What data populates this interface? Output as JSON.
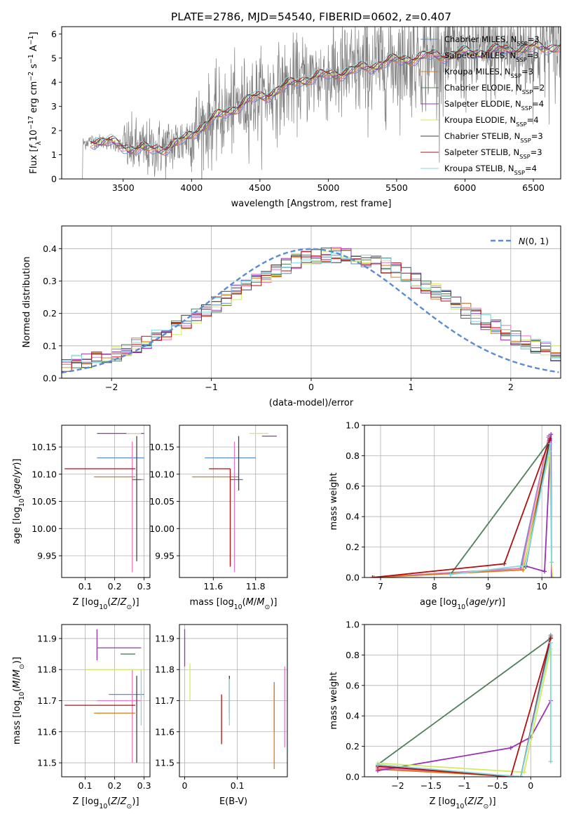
{
  "figure": {
    "title": "PLATE=2786, MJD=54540, FIBERID=0602, z=0.407"
  },
  "models": [
    {
      "name": "Chabrier MILES, N_SSP=3",
      "base": "Chabrier MILES, N",
      "sub": "SSP",
      "tail": "=3",
      "color": "#5b8bd0"
    },
    {
      "name": "Salpeter MILES, N_SSP=3",
      "base": "Salpeter MILES, N",
      "sub": "SSP",
      "tail": "=3",
      "color": "#e377c2"
    },
    {
      "name": "Kroupa MILES, N_SSP=3",
      "base": "Kroupa MILES, N",
      "sub": "SSP",
      "tail": "=3",
      "color": "#dd7a20"
    },
    {
      "name": "Chabrier ELODIE, N_SSP=2",
      "base": "Chabrier ELODIE, N",
      "sub": "SSP",
      "tail": "=2",
      "color": "#4f7f5a"
    },
    {
      "name": "Salpeter ELODIE, N_SSP=4",
      "base": "Salpeter ELODIE, N",
      "sub": "SSP",
      "tail": "=4",
      "color": "#9b30b8"
    },
    {
      "name": "Kroupa ELODIE, N_SSP=4",
      "base": "Kroupa ELODIE, N",
      "sub": "SSP",
      "tail": "=4",
      "color": "#d4ea5c"
    },
    {
      "name": "Chabrier STELIB, N_SSP=3",
      "base": "Chabrier STELIB, N",
      "sub": "SSP",
      "tail": "=3",
      "color": "#3d4048"
    },
    {
      "name": "Salpeter STELIB, N_SSP=3",
      "base": "Salpeter STELIB, N",
      "sub": "SSP",
      "tail": "=3",
      "color": "#b01010"
    },
    {
      "name": "Kroupa STELIB, N_SSP=4",
      "base": "Kroupa STELIB, N",
      "sub": "SSP",
      "tail": "=4",
      "color": "#82d8e0"
    }
  ],
  "chart_data": [
    {
      "id": "spectrum",
      "type": "line",
      "xlabel": "wavelength [Angstrom, rest frame]",
      "ylabel": "Flux [f_λ 10^-17 erg cm^-2 s^-1 A^-1]",
      "xlim": [
        3050,
        6700
      ],
      "ylim": [
        0,
        6.3
      ],
      "xticks": [
        3500,
        4000,
        4500,
        5000,
        5500,
        6000,
        6500
      ],
      "yticks": [
        0,
        1,
        2,
        3,
        4,
        5,
        6
      ],
      "legend": "upper-right",
      "data_color": "#808080",
      "x_start": 3200,
      "x_end": 6700,
      "continuum_anchors": {
        "x": [
          3200,
          3260,
          3400,
          3550,
          3700,
          3800,
          3950,
          4050,
          4200,
          4400,
          4600,
          4800,
          5000,
          5200,
          5400,
          5600,
          5800,
          6000,
          6200,
          6500,
          6700
        ],
        "y": [
          1.45,
          1.6,
          1.5,
          1.3,
          1.2,
          1.3,
          1.6,
          2.1,
          2.6,
          3.2,
          3.6,
          4.1,
          4.3,
          4.5,
          4.8,
          5.0,
          5.1,
          5.2,
          5.3,
          5.4,
          5.5
        ]
      }
    },
    {
      "id": "residuals",
      "type": "histogram",
      "xlabel": "(data-model)/error",
      "ylabel": "Normed distribution",
      "xlim": [
        -2.5,
        2.5
      ],
      "ylim": [
        0,
        0.47
      ],
      "xticks": [
        -2,
        -1,
        0,
        1,
        2
      ],
      "yticks": [
        0.0,
        0.1,
        0.2,
        0.3,
        0.4
      ],
      "grid": true,
      "legend": "upper-right",
      "reference_label": "N(0,1)",
      "reference_color": "#5b8bd0",
      "bin_width": 0.1
    },
    {
      "id": "age-vs-Z",
      "type": "errorbar",
      "xlabel": "Z [log10(Z/Z⊙)]",
      "ylabel": "age  [log10(age/yr)]",
      "xlim": [
        0.02,
        0.32
      ],
      "ylim": [
        9.91,
        10.19
      ],
      "xticks": [
        0.1,
        0.2,
        0.3
      ],
      "yticks": [
        9.95,
        10.0,
        10.05,
        10.1,
        10.15
      ],
      "grid": true,
      "points": [
        {
          "x": 0.22,
          "xerr": [
            0.08,
            0.08
          ],
          "y": 10.13,
          "yerr": [
            0.0,
            0.0
          ]
        },
        {
          "x": 0.26,
          "xerr": [
            0.0,
            0.04
          ],
          "y": 10.09,
          "yerr": [
            0.17,
            0.07
          ]
        },
        {
          "x": 0.2,
          "xerr": [
            0.07,
            0.07
          ],
          "y": 10.095,
          "yerr": [
            0.0,
            0.0
          ]
        },
        {
          "x": 0.28,
          "xerr": [
            0.02,
            0.01
          ],
          "y": 10.09,
          "yerr": [
            0.0,
            0.0
          ]
        },
        {
          "x": 0.22,
          "xerr": [
            0.08,
            0.08
          ],
          "y": 10.175,
          "yerr": [
            0.0,
            0.0
          ]
        },
        {
          "x": 0.24,
          "xerr": [
            0.0,
            0.05
          ],
          "y": 10.175,
          "yerr": [
            0.0,
            0.0
          ]
        },
        {
          "x": 0.275,
          "xerr": [
            0.0,
            0.0
          ],
          "y": 10.12,
          "yerr": [
            0.18,
            0.05
          ]
        },
        {
          "x": 0.11,
          "xerr": [
            0.08,
            0.16
          ],
          "y": 10.11,
          "yerr": [
            0.0,
            0.0
          ]
        },
        {
          "x": 0.29,
          "xerr": [
            0.0,
            0.0
          ],
          "y": 10.09,
          "yerr": [
            0.0,
            0.0
          ]
        }
      ]
    },
    {
      "id": "age-vs-mass",
      "type": "errorbar",
      "xlabel": "mass [log10(M/M⊙)]",
      "ylabel": "",
      "xlim": [
        11.44,
        11.95
      ],
      "ylim": [
        9.91,
        10.19
      ],
      "xticks": [
        11.6,
        11.8
      ],
      "yticks": [
        9.95,
        10.0,
        10.05,
        10.1,
        10.15
      ],
      "grid": true,
      "points": [
        {
          "x": 11.72,
          "xerr": [
            0.16,
            0.08
          ],
          "y": 10.13,
          "yerr": [
            0.0,
            0.0
          ]
        },
        {
          "x": 11.7,
          "xerr": [
            0.0,
            0.0
          ],
          "y": 10.09,
          "yerr": [
            0.17,
            0.07
          ]
        },
        {
          "x": 11.66,
          "xerr": [
            0.16,
            0.06
          ],
          "y": 10.095,
          "yerr": [
            0.0,
            0.0
          ]
        },
        {
          "x": 11.72,
          "xerr": [
            0.04,
            0.02
          ],
          "y": 10.09,
          "yerr": [
            0.0,
            0.0
          ]
        },
        {
          "x": 11.87,
          "xerr": [
            0.04,
            0.03
          ],
          "y": 10.17,
          "yerr": [
            0.0,
            0.0
          ]
        },
        {
          "x": 11.8,
          "xerr": [
            0.03,
            0.06
          ],
          "y": 10.175,
          "yerr": [
            0.0,
            0.0
          ]
        },
        {
          "x": 11.72,
          "xerr": [
            0.0,
            0.0
          ],
          "y": 10.12,
          "yerr": [
            0.05,
            0.05
          ]
        },
        {
          "x": 11.68,
          "xerr": [
            0.1,
            0.0
          ],
          "y": 10.11,
          "yerr": [
            0.18,
            0.0
          ]
        },
        {
          "x": 11.72,
          "xerr": [
            0.0,
            0.0
          ],
          "y": 10.09,
          "yerr": [
            0.0,
            0.0
          ]
        }
      ]
    },
    {
      "id": "weight-vs-age",
      "type": "line",
      "xlabel": "age  [log10(age/yr)]",
      "ylabel": "mass weight",
      "xlim": [
        6.7,
        10.35
      ],
      "ylim": [
        0,
        1.0
      ],
      "xticks": [
        7,
        8,
        9,
        10
      ],
      "yticks": [
        0.0,
        0.2,
        0.4,
        0.6,
        0.8,
        1.0
      ],
      "grid": true,
      "series": [
        {
          "x": [
            6.85,
            9.6,
            10.13
          ],
          "y": [
            0.0,
            0.06,
            0.93
          ]
        },
        {
          "x": [
            6.85,
            9.62,
            10.12
          ],
          "y": [
            0.0,
            0.06,
            0.92
          ]
        },
        {
          "x": [
            6.88,
            9.65,
            10.14
          ],
          "y": [
            0.0,
            0.05,
            0.9
          ]
        },
        {
          "x": [
            8.3,
            10.15
          ],
          "y": [
            0.02,
            0.9
          ]
        },
        {
          "x": [
            9.65,
            10.05,
            10.17,
            10.18
          ],
          "y": [
            0.08,
            0.04,
            0.94,
            0.0
          ]
        },
        {
          "x": [
            9.65,
            10.15,
            10.18,
            10.2
          ],
          "y": [
            0.07,
            0.83,
            0.1,
            0.0
          ]
        },
        {
          "x": [
            9.7,
            10.15
          ],
          "y": [
            0.07,
            0.91
          ]
        },
        {
          "x": [
            6.85,
            9.3,
            10.15
          ],
          "y": [
            0.0,
            0.09,
            0.91
          ]
        },
        {
          "x": [
            8.3,
            9.7,
            10.16,
            10.18
          ],
          "y": [
            0.02,
            0.08,
            0.88,
            0.1
          ]
        }
      ]
    },
    {
      "id": "mass-vs-Z",
      "type": "errorbar",
      "xlabel": "Z [log10(Z/Z⊙)]",
      "ylabel": "mass [log10(M/M⊙)]",
      "xlim": [
        0.02,
        0.32
      ],
      "ylim": [
        11.455,
        11.945
      ],
      "xticks": [
        0.1,
        0.2,
        0.3
      ],
      "yticks": [
        11.5,
        11.6,
        11.7,
        11.8,
        11.9
      ],
      "grid": true,
      "points": [
        {
          "x": 0.24,
          "xerr": [
            0.06,
            0.06
          ],
          "y": 11.72,
          "yerr": [
            0.0,
            0.0
          ]
        },
        {
          "x": 0.26,
          "xerr": [
            0.12,
            0.03
          ],
          "y": 11.7,
          "yerr": [
            0.2,
            0.1
          ]
        },
        {
          "x": 0.2,
          "xerr": [
            0.07,
            0.07
          ],
          "y": 11.66,
          "yerr": [
            0.0,
            0.0
          ]
        },
        {
          "x": 0.25,
          "xerr": [
            0.03,
            0.02
          ],
          "y": 11.85,
          "yerr": [
            0.0,
            0.0
          ]
        },
        {
          "x": 0.14,
          "xerr": [
            0.0,
            0.15
          ],
          "y": 11.87,
          "yerr": [
            0.04,
            0.06
          ]
        },
        {
          "x": 0.24,
          "xerr": [
            0.14,
            0.06
          ],
          "y": 11.8,
          "yerr": [
            0.0,
            0.0
          ]
        },
        {
          "x": 0.275,
          "xerr": [
            0.0,
            0.0
          ],
          "y": 11.72,
          "yerr": [
            0.22,
            0.06
          ]
        },
        {
          "x": 0.11,
          "xerr": [
            0.08,
            0.16
          ],
          "y": 11.685,
          "yerr": [
            0.0,
            0.0
          ]
        },
        {
          "x": 0.29,
          "xerr": [
            0.0,
            0.0
          ],
          "y": 11.7,
          "yerr": [
            0.08,
            0.1
          ]
        }
      ]
    },
    {
      "id": "mass-vs-ebv",
      "type": "errorbar",
      "xlabel": "E(B-V)",
      "ylabel": "",
      "xlim": [
        -0.01,
        0.195
      ],
      "ylim": [
        11.455,
        11.945
      ],
      "xticks": [
        0.0,
        0.1
      ],
      "yticks": [
        11.5,
        11.6,
        11.7,
        11.8,
        11.9
      ],
      "grid": true,
      "points": [
        {
          "x": 0.17,
          "xerr": [
            0.0,
            0.0
          ],
          "y": 11.7,
          "yerr": [
            0.1,
            0.06
          ]
        },
        {
          "x": 0.19,
          "xerr": [
            0.0,
            0.0
          ],
          "y": 11.7,
          "yerr": [
            0.15,
            0.11
          ]
        },
        {
          "x": 0.17,
          "xerr": [
            0.0,
            0.0
          ],
          "y": 11.7,
          "yerr": [
            0.22,
            0.05
          ]
        },
        {
          "x": 0.085,
          "xerr": [
            0.0,
            0.0
          ],
          "y": 11.72,
          "yerr": [
            0.06,
            0.06
          ]
        },
        {
          "x": 0.0,
          "xerr": [
            0.0,
            0.0
          ],
          "y": 11.87,
          "yerr": [
            0.06,
            0.06
          ]
        },
        {
          "x": 0.01,
          "xerr": [
            0.0,
            0.0
          ],
          "y": 11.75,
          "yerr": [
            0.05,
            0.07
          ]
        },
        {
          "x": 0.085,
          "xerr": [
            0.0,
            0.0
          ],
          "y": 11.72,
          "yerr": [
            0.08,
            0.06
          ]
        },
        {
          "x": 0.07,
          "xerr": [
            0.0,
            0.0
          ],
          "y": 11.64,
          "yerr": [
            0.08,
            0.08
          ]
        },
        {
          "x": 0.085,
          "xerr": [
            0.0,
            0.0
          ],
          "y": 11.67,
          "yerr": [
            0.05,
            0.1
          ]
        }
      ]
    },
    {
      "id": "weight-vs-Z",
      "type": "line",
      "xlabel": "Z [log10(Z/Z⊙)]",
      "ylabel": "mass weight",
      "xlim": [
        -2.5,
        0.45
      ],
      "ylim": [
        0,
        1.0
      ],
      "xticks": [
        -2.0,
        -1.5,
        -1.0,
        -0.5,
        0.0
      ],
      "yticks": [
        0.0,
        0.2,
        0.4,
        0.6,
        0.8,
        1.0
      ],
      "grid": true,
      "series": [
        {
          "x": [
            -2.3,
            -0.15,
            0.3
          ],
          "y": [
            0.06,
            0.0,
            0.93
          ]
        },
        {
          "x": [
            -2.3,
            -0.15,
            0.28
          ],
          "y": [
            0.06,
            0.0,
            0.9
          ]
        },
        {
          "x": [
            -2.3,
            -0.15,
            0.3
          ],
          "y": [
            0.05,
            0.0,
            0.92
          ]
        },
        {
          "x": [
            -2.3,
            0.3
          ],
          "y": [
            0.08,
            0.91
          ]
        },
        {
          "x": [
            -2.3,
            -0.3,
            0.0,
            0.3
          ],
          "y": [
            0.04,
            0.19,
            0.26,
            0.5
          ]
        },
        {
          "x": [
            -2.3,
            -0.1,
            0.3,
            0.3
          ],
          "y": [
            0.09,
            0.03,
            0.84,
            0.1
          ]
        },
        {
          "x": [
            -2.3,
            -0.15,
            0.3
          ],
          "y": [
            0.07,
            0.0,
            0.91
          ]
        },
        {
          "x": [
            -2.3,
            -0.3,
            0.3
          ],
          "y": [
            0.07,
            0.0,
            0.91
          ]
        },
        {
          "x": [
            -2.3,
            -0.15,
            0.3,
            0.3
          ],
          "y": [
            0.08,
            0.0,
            0.88,
            0.1
          ]
        }
      ]
    }
  ]
}
